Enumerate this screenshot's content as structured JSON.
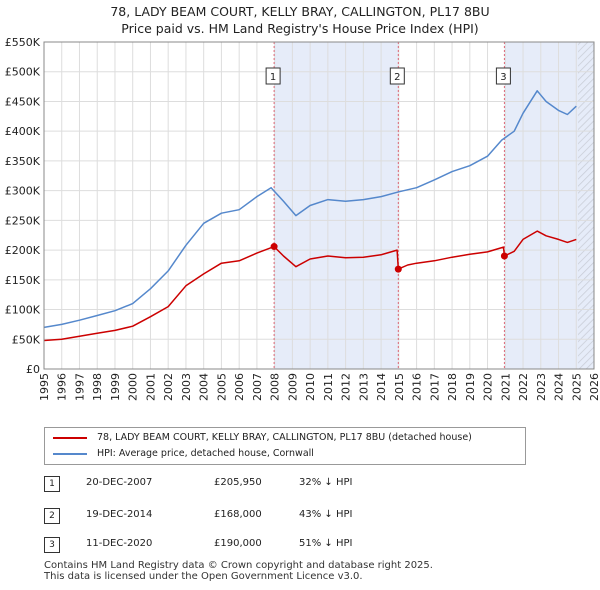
{
  "title_line1": "78, LADY BEAM COURT, KELLY BRAY, CALLINGTON, PL17 8BU",
  "title_line2": "Price paid vs. HM Land Registry's House Price Index (HPI)",
  "colors": {
    "price_paid": "#cc0000",
    "hpi": "#5588cc",
    "shade": "#e6ecf9",
    "hatch": "#c8ccd6",
    "grid": "#dddddd",
    "sale_line": "#dd6677"
  },
  "legend": {
    "price_paid_label": "78, LADY BEAM COURT, KELLY BRAY, CALLINGTON, PL17 8BU (detached house)",
    "hpi_label": "HPI: Average price, detached house, Cornwall"
  },
  "sales": [
    {
      "num": "1",
      "date": "20-DEC-2007",
      "price": "£205,950",
      "diff": "32% ↓ HPI",
      "year": 2007.97,
      "value": 205950
    },
    {
      "num": "2",
      "date": "19-DEC-2014",
      "price": "£168,000",
      "diff": "43% ↓ HPI",
      "year": 2014.97,
      "value": 168000
    },
    {
      "num": "3",
      "date": "11-DEC-2020",
      "price": "£190,000",
      "diff": "51% ↓ HPI",
      "year": 2020.95,
      "value": 190000
    }
  ],
  "footer": {
    "line1": "Contains HM Land Registry data © Crown copyright and database right 2025.",
    "line2": "This data is licensed under the Open Government Licence v3.0."
  },
  "chart_data": {
    "type": "line",
    "title": "78, LADY BEAM COURT, KELLY BRAY, CALLINGTON, PL17 8BU — Price paid vs. HM Land Registry's House Price Index (HPI)",
    "xlabel": "",
    "ylabel": "",
    "xlim": [
      1995,
      2026
    ],
    "ylim": [
      0,
      550000
    ],
    "x_ticks": [
      1995,
      1996,
      1997,
      1998,
      1999,
      2000,
      2001,
      2002,
      2003,
      2004,
      2005,
      2006,
      2007,
      2008,
      2009,
      2010,
      2011,
      2012,
      2013,
      2014,
      2015,
      2016,
      2017,
      2018,
      2019,
      2020,
      2021,
      2022,
      2023,
      2024,
      2025,
      2026
    ],
    "y_ticks": [
      {
        "value": 0,
        "label": "£0"
      },
      {
        "value": 50000,
        "label": "£50K"
      },
      {
        "value": 100000,
        "label": "£100K"
      },
      {
        "value": 150000,
        "label": "£150K"
      },
      {
        "value": 200000,
        "label": "£200K"
      },
      {
        "value": 250000,
        "label": "£250K"
      },
      {
        "value": 300000,
        "label": "£300K"
      },
      {
        "value": 350000,
        "label": "£350K"
      },
      {
        "value": 400000,
        "label": "£400K"
      },
      {
        "value": 450000,
        "label": "£450K"
      },
      {
        "value": 500000,
        "label": "£500K"
      },
      {
        "value": 550000,
        "label": "£550K"
      }
    ],
    "shaded_ranges": [
      [
        2007.97,
        2014.97
      ],
      [
        2020.95,
        2026
      ]
    ],
    "hatched_range": [
      2025.1,
      2026
    ],
    "series": [
      {
        "name": "78, LADY BEAM COURT, KELLY BRAY, CALLINGTON, PL17 8BU (detached house)",
        "x": [
          1995,
          1996,
          1997,
          1998,
          1999,
          2000,
          2001,
          2002,
          2003,
          2004,
          2005,
          2006,
          2007,
          2007.97,
          2008.5,
          2009.2,
          2010,
          2011,
          2012,
          2013,
          2014,
          2014.9,
          2014.97,
          2015.5,
          2016,
          2017,
          2018,
          2019,
          2020,
          2020.9,
          2020.95,
          2021.5,
          2022,
          2022.8,
          2023.3,
          2024,
          2024.5,
          2025
        ],
        "values": [
          48000,
          50000,
          55000,
          60000,
          65000,
          72000,
          88000,
          105000,
          140000,
          160000,
          178000,
          182000,
          195000,
          205950,
          190000,
          172000,
          185000,
          190000,
          187000,
          188000,
          192000,
          200000,
          168000,
          175000,
          178000,
          182000,
          188000,
          193000,
          197000,
          205000,
          190000,
          198000,
          218000,
          232000,
          224000,
          218000,
          213000,
          218000
        ]
      },
      {
        "name": "HPI: Average price, detached house, Cornwall",
        "x": [
          1995,
          1996,
          1997,
          1998,
          1999,
          2000,
          2001,
          2002,
          2003,
          2004,
          2005,
          2006,
          2007,
          2007.8,
          2008.5,
          2009.2,
          2010,
          2011,
          2012,
          2013,
          2014,
          2015,
          2016,
          2017,
          2018,
          2019,
          2020,
          2020.8,
          2021.5,
          2022,
          2022.8,
          2023.3,
          2024,
          2024.5,
          2025
        ],
        "values": [
          70000,
          75000,
          82000,
          90000,
          98000,
          110000,
          135000,
          165000,
          208000,
          245000,
          262000,
          268000,
          290000,
          305000,
          282000,
          258000,
          275000,
          285000,
          282000,
          285000,
          290000,
          298000,
          305000,
          318000,
          332000,
          342000,
          358000,
          385000,
          400000,
          430000,
          468000,
          450000,
          435000,
          428000,
          442000
        ]
      }
    ],
    "annotations": [
      {
        "label": "1",
        "x": 2007.97
      },
      {
        "label": "2",
        "x": 2014.97
      },
      {
        "label": "3",
        "x": 2020.95
      }
    ]
  }
}
